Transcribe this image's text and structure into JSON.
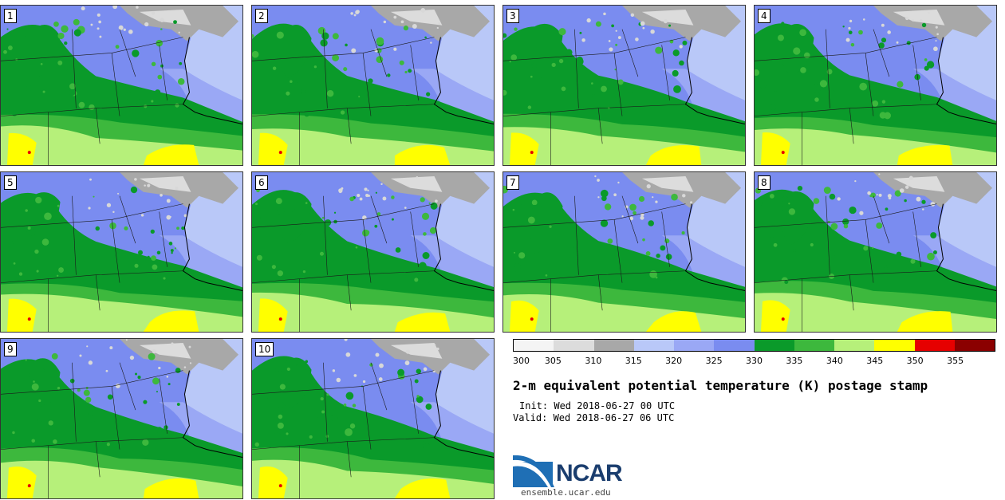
{
  "panels": [
    {
      "label": "1"
    },
    {
      "label": "2"
    },
    {
      "label": "3"
    },
    {
      "label": "4"
    },
    {
      "label": "5"
    },
    {
      "label": "6"
    },
    {
      "label": "7"
    },
    {
      "label": "8"
    },
    {
      "label": "9"
    },
    {
      "label": "10"
    }
  ],
  "colorbar": {
    "colors": [
      "#f4f4f4",
      "#dcdcdc",
      "#a8a8a8",
      "#b9c8f8",
      "#9aa8f5",
      "#7a8cf0",
      "#0a9a2a",
      "#3db83d",
      "#b6f07a",
      "#ffff00",
      "#e60000",
      "#8b0000"
    ],
    "labels": [
      "300",
      "305",
      "310",
      "315",
      "320",
      "325",
      "330",
      "335",
      "340",
      "345",
      "350",
      "355"
    ]
  },
  "title": "2-m equivalent potential temperature (K) postage stamp",
  "init": "Init: Wed 2018-06-27 00 UTC",
  "valid": "Valid: Wed 2018-06-27 06 UTC",
  "logo": {
    "text": "NCAR"
  },
  "site": "ensemble.ucar.edu",
  "palette": {
    "ocean": "#b9c8f8",
    "purple": "#7a8cf0",
    "light_purple": "#9aa8f5",
    "green": "#0a9a2a",
    "mid_green": "#3db83d",
    "light_green": "#b6f07a",
    "yellow": "#ffff00",
    "gray": "#a8a8a8",
    "red": "#e60000"
  }
}
